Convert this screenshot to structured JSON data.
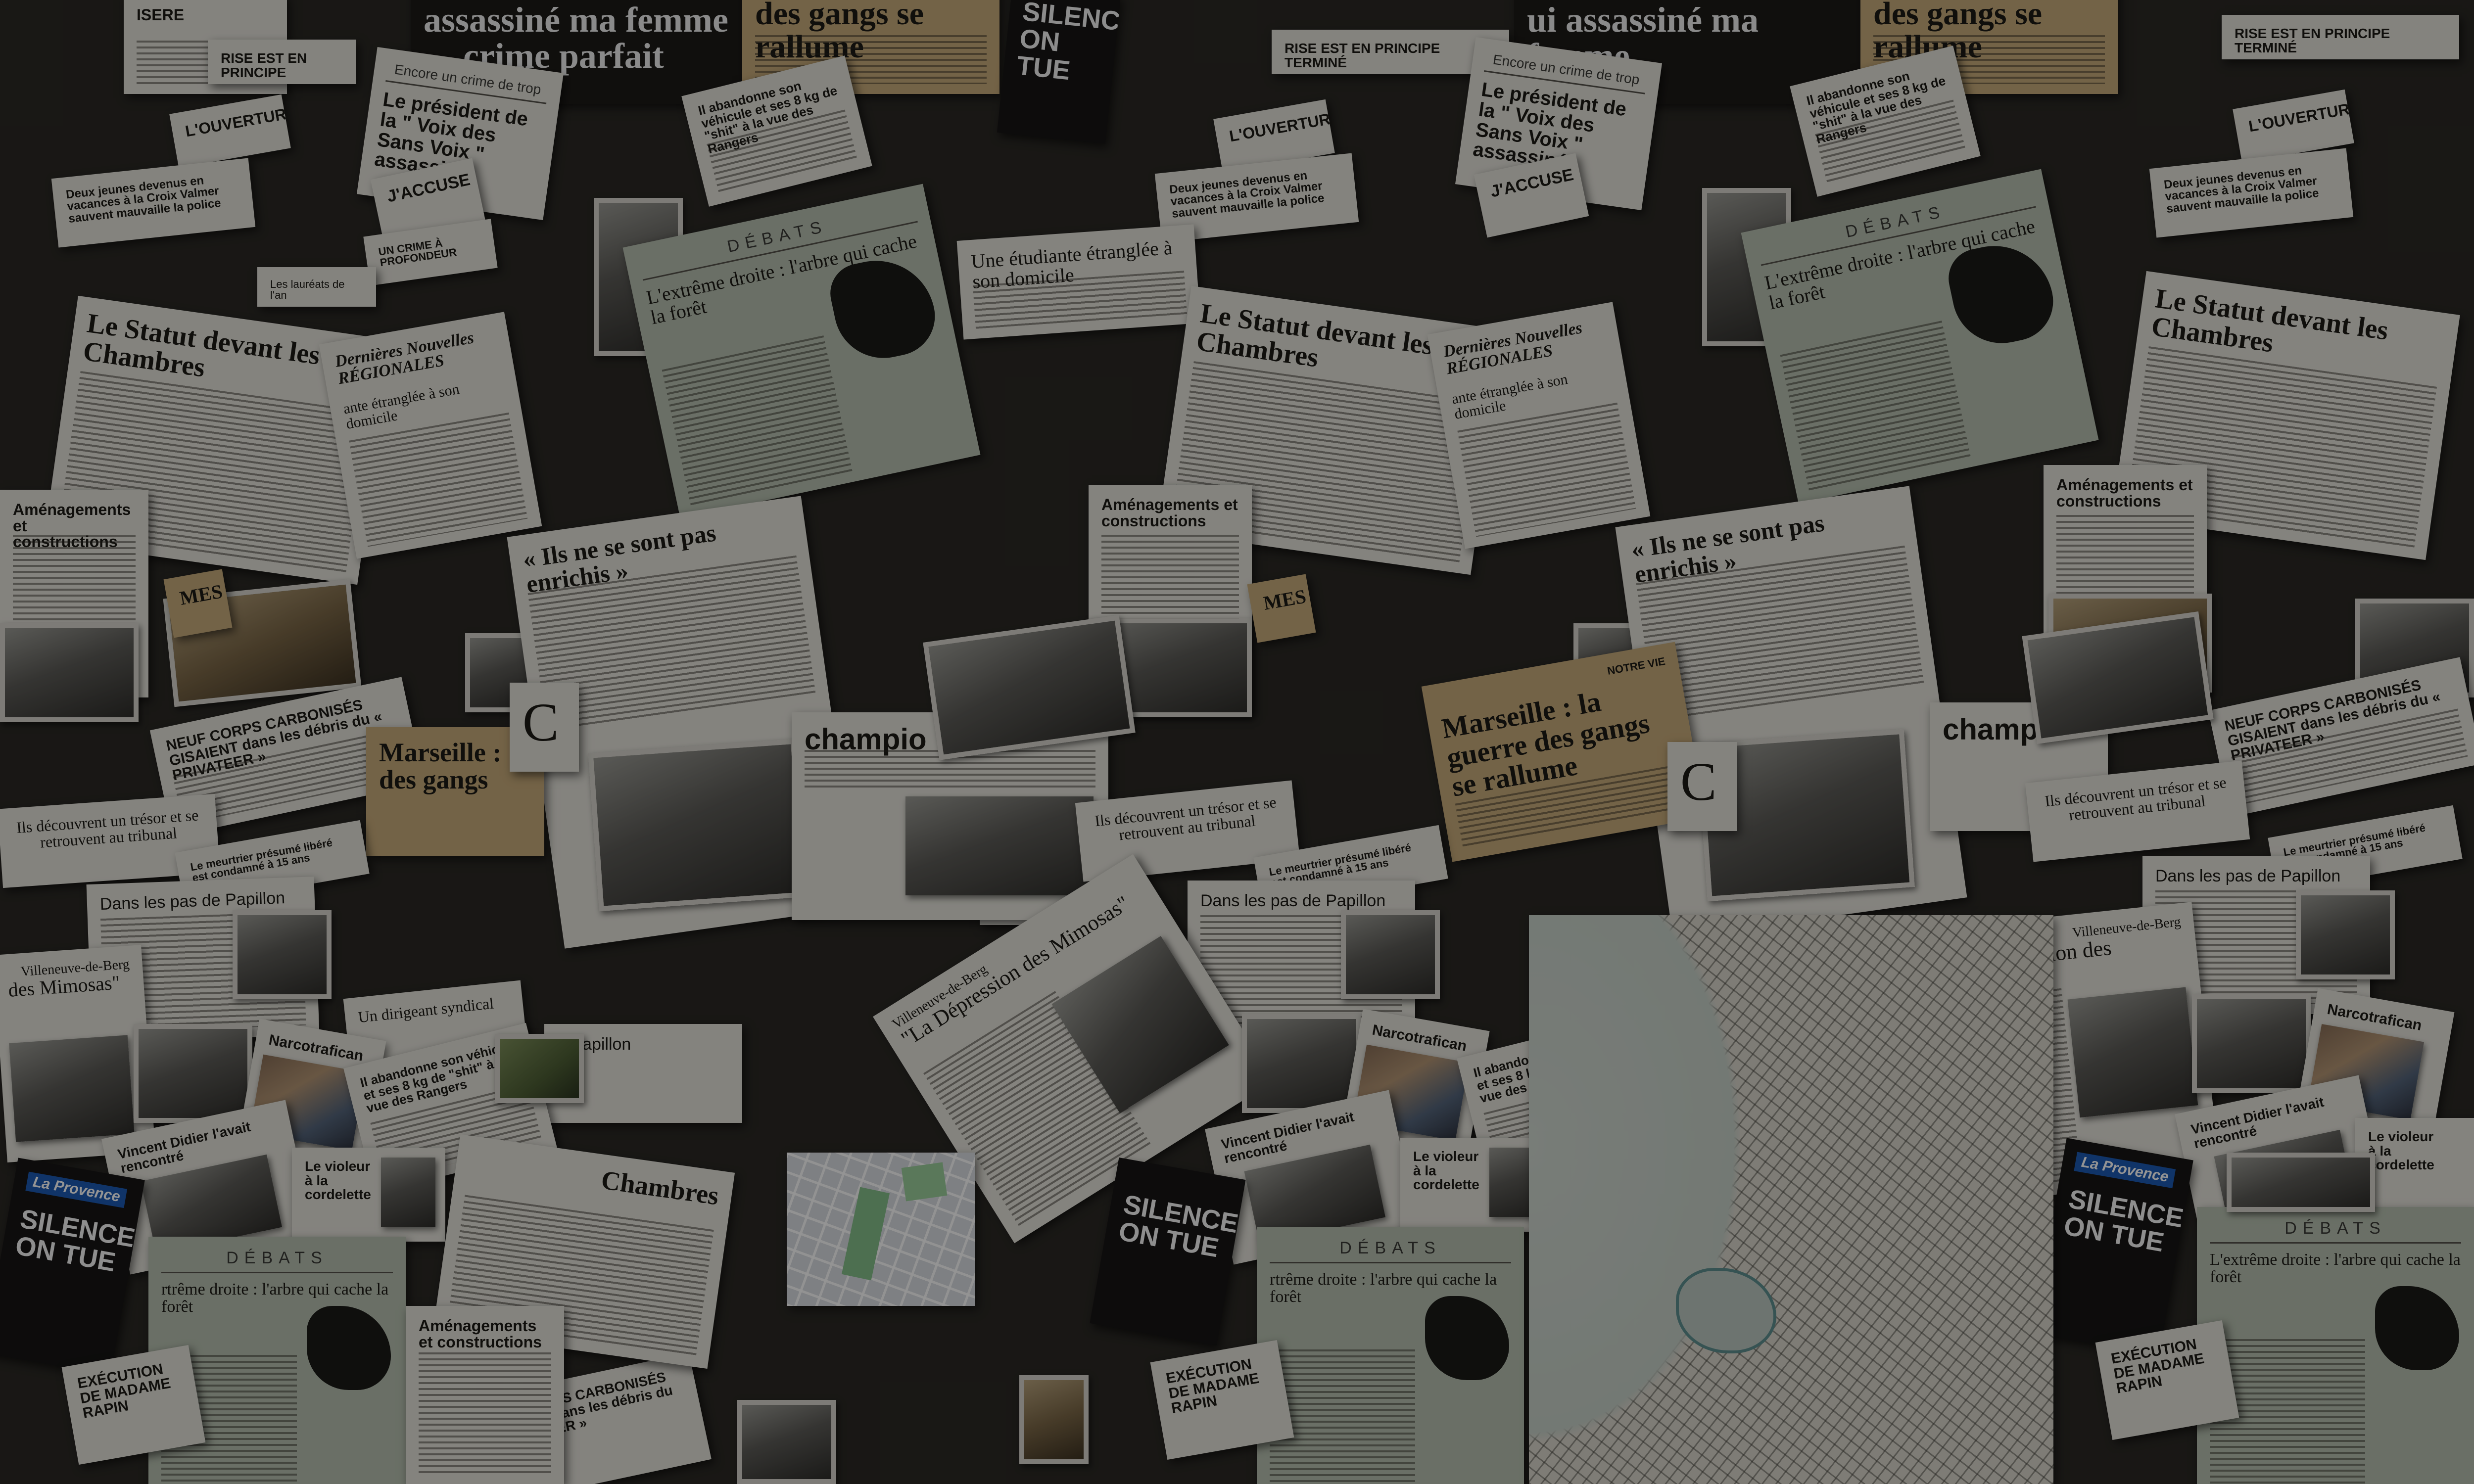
{
  "headlines": {
    "assassine": "assassiné ma femme",
    "crime_parfait": "crime parfait",
    "assassine_repeat": "ui assassiné ma femme",
    "gangs_top": "des gangs se rallume",
    "gangs_top_repeat": "des gangs se rallume",
    "silence_top": "SILENCE ON TUE",
    "isere": "ISERE",
    "crise_principe": "RISE EST EN PRINCIPE",
    "crise_termine": "RISE EST EN PRINCIPE TERMINÉ",
    "crime_de_trop_kicker": "Encore un crime de trop",
    "president_voix": "Le président de la \" Voix des Sans Voix \" assassiné",
    "president_voix_repeat": "Le président de la \" Voix des Sans Voix \" assassiné",
    "abandonne_vehicule": "Il abandonne son véhicule et ses 8 kg de \"shit\" à la vue des Rangers",
    "abandonne_vehicule_repeat": "Il abandonne son véhicule et ses 8 kg de \"shit\" à la vue des Rangers",
    "ouverture": "L'OUVERTURE",
    "jaccuse": "J'ACCUSE",
    "deux_jeunes": "Deux jeunes devenus en vacances à la Croix Valmer sauvent mauvaille la police",
    "debats_kicker": "DÉBATS",
    "extreme_droite": "L'extrême droite : l'arbre qui cache la forêt",
    "extreme_droite_repeat": "L'extrême droite : l'arbre qui cache la forêt",
    "extreme_droite_bottom": "rtrême droite : l'arbre qui cache la forêt",
    "extreme_droite_bottom2": "rtrême droite : l'arbre qui cache la forêt",
    "etudiante": "Une étudiante étranglée à son domicile",
    "etudiante_short": "ante étranglée à son domicile",
    "statut": "Le Statut devant les Chambres",
    "statut_repeat": "Le Statut devant les Chambres",
    "statut_right": "Le Statut devant les Chambres",
    "dernieres_nouvelles": "Dernières Nouvelles RÉGIONALES",
    "dernieres_nouvelles_repeat": "Dernières Nouvelles RÉGIONALES",
    "laureats": "Les lauréats de l'an",
    "amenagements": "Aménagements et constructions",
    "amenagements_repeat": "Aménagements et constructions",
    "amenagements_right": "Aménagements et constructions",
    "amenagements_bottom": "Aménagements et constructions",
    "enrichis": "« Ils ne se sont pas enrichis »",
    "enrichis_repeat": "« Ils ne se sont pas enrichis »",
    "neuf_corps": "NEUF CORPS CARBONISÉS GISAIENT dans les débris du « PRIVATEER »",
    "neuf_corps_repeat": "NEUF CORPS CARBONISÉS GISAIENT dans les débris du « PRIVATEER »",
    "neuf_corps_bottom": "NEUF CORPS CARBONISÉS GISAIENT dans les débris du « PRIVATEER »",
    "marseille": "Marseille : la guerre des gangs se rallume",
    "marseille_left": "Marseille : des gangs",
    "champion": "champio",
    "champion_repeat": "champio",
    "tresor": "Ils découvrent un trésor et se retrouvent au tribunal",
    "tresor_repeat": "Ils découvrent un trésor et se retrouvent au tribunal",
    "tresor_right": "Ils découvrent un trésor et se retrouvent au tribunal",
    "papillon": "Dans les pas de Papillon",
    "papillon_repeat": "Dans les pas de Papillon",
    "papillon_right": "Dans les pas de Papillon",
    "papillon_short": "e Papillon",
    "mimosas_left": "des Mimosas\"",
    "mimosas": "\"La Dépression des Mimosas\"",
    "mimosas_right": "\"La Dépression des Mimosas\"",
    "villeneuve": "Villeneuve-de-Berg",
    "villeneuve_left": "Villeneuve-de-Berg",
    "villeneuve_right": "Villeneuve-de-Berg",
    "narcotrafican": "Narcotrafican",
    "narcotrafican_right": "Narcotrafican",
    "dirigeant": "Un dirigeant syndical",
    "vincent_didier": "Vincent Didier l'avait rencontré",
    "vincent_didier_repeat": "Vincent Didier l'avait rencontré",
    "violeur": "Le violeur à la cordelette",
    "violeur_repeat": "Le violeur à la cordelette",
    "la_provence": "La Provence",
    "silence_on_tue": "SILENCE ON TUE",
    "silence_on_tue_center": "SILENCE ON TUE",
    "silence_on_tue_right": "SILENCE ON TUE",
    "chambres_bottom": "Chambres",
    "execution": "EXÉCUTION DE MADAME RAPIN",
    "execution_repeat": "EXÉCUTION DE MADAME RAPIN",
    "notre_vie": "NOTRE VIE",
    "mes": "MES",
    "mes_repeat": "MES",
    "big_c": "C",
    "big_c_repeat": "C",
    "meurtrier": "Le meurtrier présumé libéré est condamné à 15 ans",
    "meurtrier_repeat": "Le meurtrier présumé libéré est condamné à 15 ans",
    "meurtrier_right": "Le meurtrier présumé libéré est condamné à 15 ans",
    "un_crime": "UN CRIME À PROFONDEUR"
  }
}
